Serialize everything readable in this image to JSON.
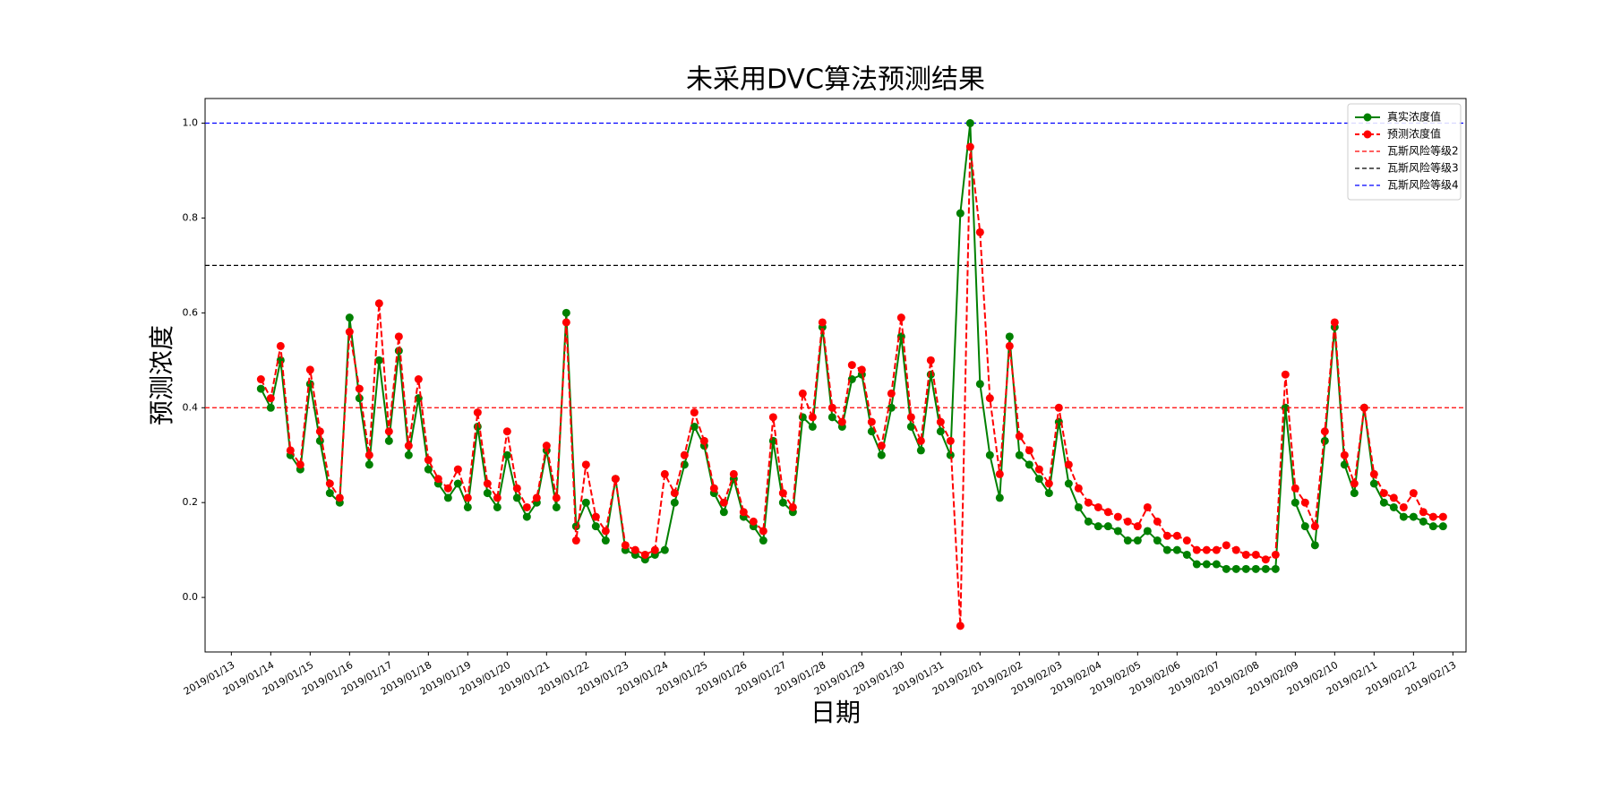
{
  "chart_data": {
    "type": "line",
    "title": "未采用DVC算法预测结果",
    "x_label": "日期",
    "y_label": "预测浓度",
    "x": [
      "2019-01-13 18:00",
      "2019-01-14 00:00",
      "2019-01-14 06:00",
      "2019-01-14 12:00",
      "2019-01-14 18:00",
      "2019-01-15 00:00",
      "2019-01-15 06:00",
      "2019-01-15 12:00",
      "2019-01-15 18:00",
      "2019-01-16 00:00",
      "2019-01-16 06:00",
      "2019-01-16 12:00",
      "2019-01-16 18:00",
      "2019-01-17 00:00",
      "2019-01-17 06:00",
      "2019-01-17 12:00",
      "2019-01-17 18:00",
      "2019-01-18 00:00",
      "2019-01-18 06:00",
      "2019-01-18 12:00",
      "2019-01-18 18:00",
      "2019-01-19 00:00",
      "2019-01-19 06:00",
      "2019-01-19 12:00",
      "2019-01-19 18:00",
      "2019-01-20 00:00",
      "2019-01-20 06:00",
      "2019-01-20 12:00",
      "2019-01-20 18:00",
      "2019-01-21 00:00",
      "2019-01-21 06:00",
      "2019-01-21 12:00",
      "2019-01-21 18:00",
      "2019-01-22 00:00",
      "2019-01-22 06:00",
      "2019-01-22 12:00",
      "2019-01-22 18:00",
      "2019-01-23 00:00",
      "2019-01-23 06:00",
      "2019-01-23 12:00",
      "2019-01-23 18:00",
      "2019-01-24 00:00",
      "2019-01-24 06:00",
      "2019-01-24 12:00",
      "2019-01-24 18:00",
      "2019-01-25 00:00",
      "2019-01-25 06:00",
      "2019-01-25 12:00",
      "2019-01-25 18:00",
      "2019-01-26 00:00",
      "2019-01-26 06:00",
      "2019-01-26 12:00",
      "2019-01-26 18:00",
      "2019-01-27 00:00",
      "2019-01-27 06:00",
      "2019-01-27 12:00",
      "2019-01-27 18:00",
      "2019-01-28 00:00",
      "2019-01-28 06:00",
      "2019-01-28 12:00",
      "2019-01-28 18:00",
      "2019-01-29 00:00",
      "2019-01-29 06:00",
      "2019-01-29 12:00",
      "2019-01-29 18:00",
      "2019-01-30 00:00",
      "2019-01-30 06:00",
      "2019-01-30 12:00",
      "2019-01-30 18:00",
      "2019-01-31 00:00",
      "2019-01-31 06:00",
      "2019-01-31 12:00",
      "2019-01-31 18:00",
      "2019-02-01 00:00",
      "2019-02-01 06:00",
      "2019-02-01 12:00",
      "2019-02-01 18:00",
      "2019-02-02 00:00",
      "2019-02-02 06:00",
      "2019-02-02 12:00",
      "2019-02-02 18:00",
      "2019-02-03 00:00",
      "2019-02-03 06:00",
      "2019-02-03 12:00",
      "2019-02-03 18:00",
      "2019-02-04 00:00",
      "2019-02-04 06:00",
      "2019-02-04 12:00",
      "2019-02-04 18:00",
      "2019-02-05 00:00",
      "2019-02-05 06:00",
      "2019-02-05 12:00",
      "2019-02-05 18:00",
      "2019-02-06 00:00",
      "2019-02-06 06:00",
      "2019-02-06 12:00",
      "2019-02-06 18:00",
      "2019-02-07 00:00",
      "2019-02-07 06:00",
      "2019-02-07 12:00",
      "2019-02-07 18:00",
      "2019-02-08 00:00",
      "2019-02-08 06:00",
      "2019-02-08 12:00",
      "2019-02-08 18:00",
      "2019-02-09 00:00",
      "2019-02-09 06:00",
      "2019-02-09 12:00",
      "2019-02-09 18:00",
      "2019-02-10 00:00",
      "2019-02-10 06:00",
      "2019-02-10 12:00",
      "2019-02-10 18:00",
      "2019-02-11 00:00",
      "2019-02-11 06:00",
      "2019-02-11 12:00",
      "2019-02-11 18:00",
      "2019-02-12 00:00",
      "2019-02-12 06:00",
      "2019-02-12 12:00",
      "2019-02-12 18:00"
    ],
    "series": [
      {
        "name": "真实浓度值",
        "color": "#008000",
        "linestyle": "solid",
        "marker": true,
        "values": [
          0.44,
          0.4,
          0.5,
          0.3,
          0.27,
          0.45,
          0.33,
          0.22,
          0.2,
          0.59,
          0.42,
          0.28,
          0.5,
          0.33,
          0.52,
          0.3,
          0.42,
          0.27,
          0.24,
          0.21,
          0.24,
          0.19,
          0.36,
          0.22,
          0.19,
          0.3,
          0.21,
          0.17,
          0.2,
          0.31,
          0.19,
          0.6,
          0.15,
          0.2,
          0.15,
          0.12,
          0.25,
          0.1,
          0.09,
          0.08,
          0.09,
          0.1,
          0.2,
          0.28,
          0.36,
          0.32,
          0.22,
          0.18,
          0.25,
          0.17,
          0.15,
          0.12,
          0.33,
          0.2,
          0.18,
          0.38,
          0.36,
          0.57,
          0.38,
          0.36,
          0.46,
          0.47,
          0.35,
          0.3,
          0.4,
          0.55,
          0.36,
          0.31,
          0.47,
          0.35,
          0.3,
          0.81,
          1.0,
          0.45,
          0.3,
          0.21,
          0.55,
          0.3,
          0.28,
          0.25,
          0.22,
          0.37,
          0.24,
          0.19,
          0.16,
          0.15,
          0.15,
          0.14,
          0.12,
          0.12,
          0.14,
          0.12,
          0.1,
          0.1,
          0.09,
          0.07,
          0.07,
          0.07,
          0.06,
          0.06,
          0.06,
          0.06,
          0.06,
          0.06,
          0.4,
          0.2,
          0.15,
          0.11,
          0.33,
          0.57,
          0.28,
          0.22,
          0.4,
          0.24,
          0.2,
          0.19,
          0.17,
          0.17,
          0.16,
          0.15,
          0.15
        ]
      },
      {
        "name": "预测浓度值",
        "color": "#ff0000",
        "linestyle": "dashed",
        "marker": true,
        "values": [
          0.46,
          0.42,
          0.53,
          0.31,
          0.28,
          0.48,
          0.35,
          0.24,
          0.21,
          0.56,
          0.44,
          0.3,
          0.62,
          0.35,
          0.55,
          0.32,
          0.46,
          0.29,
          0.25,
          0.23,
          0.27,
          0.21,
          0.39,
          0.24,
          0.21,
          0.35,
          0.23,
          0.19,
          0.21,
          0.32,
          0.21,
          0.58,
          0.12,
          0.28,
          0.17,
          0.14,
          0.25,
          0.11,
          0.1,
          0.09,
          0.1,
          0.26,
          0.22,
          0.3,
          0.39,
          0.33,
          0.23,
          0.2,
          0.26,
          0.18,
          0.16,
          0.14,
          0.38,
          0.22,
          0.19,
          0.43,
          0.38,
          0.58,
          0.4,
          0.37,
          0.49,
          0.48,
          0.37,
          0.32,
          0.43,
          0.59,
          0.38,
          0.33,
          0.5,
          0.37,
          0.33,
          -0.06,
          0.95,
          0.77,
          0.42,
          0.26,
          0.53,
          0.34,
          0.31,
          0.27,
          0.24,
          0.4,
          0.28,
          0.23,
          0.2,
          0.19,
          0.18,
          0.17,
          0.16,
          0.15,
          0.19,
          0.16,
          0.13,
          0.13,
          0.12,
          0.1,
          0.1,
          0.1,
          0.11,
          0.1,
          0.09,
          0.09,
          0.08,
          0.09,
          0.47,
          0.23,
          0.2,
          0.15,
          0.35,
          0.58,
          0.3,
          0.24,
          0.4,
          0.26,
          0.22,
          0.21,
          0.19,
          0.22,
          0.18,
          0.17,
          0.17
        ]
      }
    ],
    "hlines": [
      {
        "name": "瓦斯风险等级2",
        "color": "#ff0000",
        "value": 0.4
      },
      {
        "name": "瓦斯风险等级3",
        "color": "#000000",
        "value": 0.7
      },
      {
        "name": "瓦斯风险等级4",
        "color": "#0000ff",
        "value": 1.0
      }
    ],
    "xlim": [
      "2019-01-12 08:00",
      "2019-02-13 08:00"
    ],
    "xticks": [
      {
        "value": "2019-01-13",
        "label": "2019/01/13"
      },
      {
        "value": "2019-01-14",
        "label": "2019/01/14"
      },
      {
        "value": "2019-01-15",
        "label": "2019/01/15"
      },
      {
        "value": "2019-01-16",
        "label": "2019/01/16"
      },
      {
        "value": "2019-01-17",
        "label": "2019/01/17"
      },
      {
        "value": "2019-01-18",
        "label": "2019/01/18"
      },
      {
        "value": "2019-01-19",
        "label": "2019/01/19"
      },
      {
        "value": "2019-01-20",
        "label": "2019/01/20"
      },
      {
        "value": "2019-01-21",
        "label": "2019/01/21"
      },
      {
        "value": "2019-01-22",
        "label": "2019/01/22"
      },
      {
        "value": "2019-01-23",
        "label": "2019/01/23"
      },
      {
        "value": "2019-01-24",
        "label": "2019/01/24"
      },
      {
        "value": "2019-01-25",
        "label": "2019/01/25"
      },
      {
        "value": "2019-01-26",
        "label": "2019/01/26"
      },
      {
        "value": "2019-01-27",
        "label": "2019/01/27"
      },
      {
        "value": "2019-01-28",
        "label": "2019/01/28"
      },
      {
        "value": "2019-01-29",
        "label": "2019/01/29"
      },
      {
        "value": "2019-01-30",
        "label": "2019/01/30"
      },
      {
        "value": "2019-01-31",
        "label": "2019/01/31"
      },
      {
        "value": "2019-02-01",
        "label": "2019/02/01"
      },
      {
        "value": "2019-02-02",
        "label": "2019/02/02"
      },
      {
        "value": "2019-02-03",
        "label": "2019/02/03"
      },
      {
        "value": "2019-02-04",
        "label": "2019/02/04"
      },
      {
        "value": "2019-02-05",
        "label": "2019/02/05"
      },
      {
        "value": "2019-02-06",
        "label": "2019/02/06"
      },
      {
        "value": "2019-02-07",
        "label": "2019/02/07"
      },
      {
        "value": "2019-02-08",
        "label": "2019/02/08"
      },
      {
        "value": "2019-02-09",
        "label": "2019/02/09"
      },
      {
        "value": "2019-02-10",
        "label": "2019/02/10"
      },
      {
        "value": "2019-02-11",
        "label": "2019/02/11"
      },
      {
        "value": "2019-02-12",
        "label": "2019/02/12"
      },
      {
        "value": "2019-02-13",
        "label": "2019/02/13"
      }
    ],
    "ylim": [
      -0.115,
      1.052
    ],
    "yticks": [
      {
        "value": 0,
        "label": "0.0"
      },
      0.2,
      0.4,
      0.6,
      0.8,
      {
        "value": 1,
        "label": "1.0"
      }
    ],
    "grid": false,
    "legend": "upper right"
  }
}
